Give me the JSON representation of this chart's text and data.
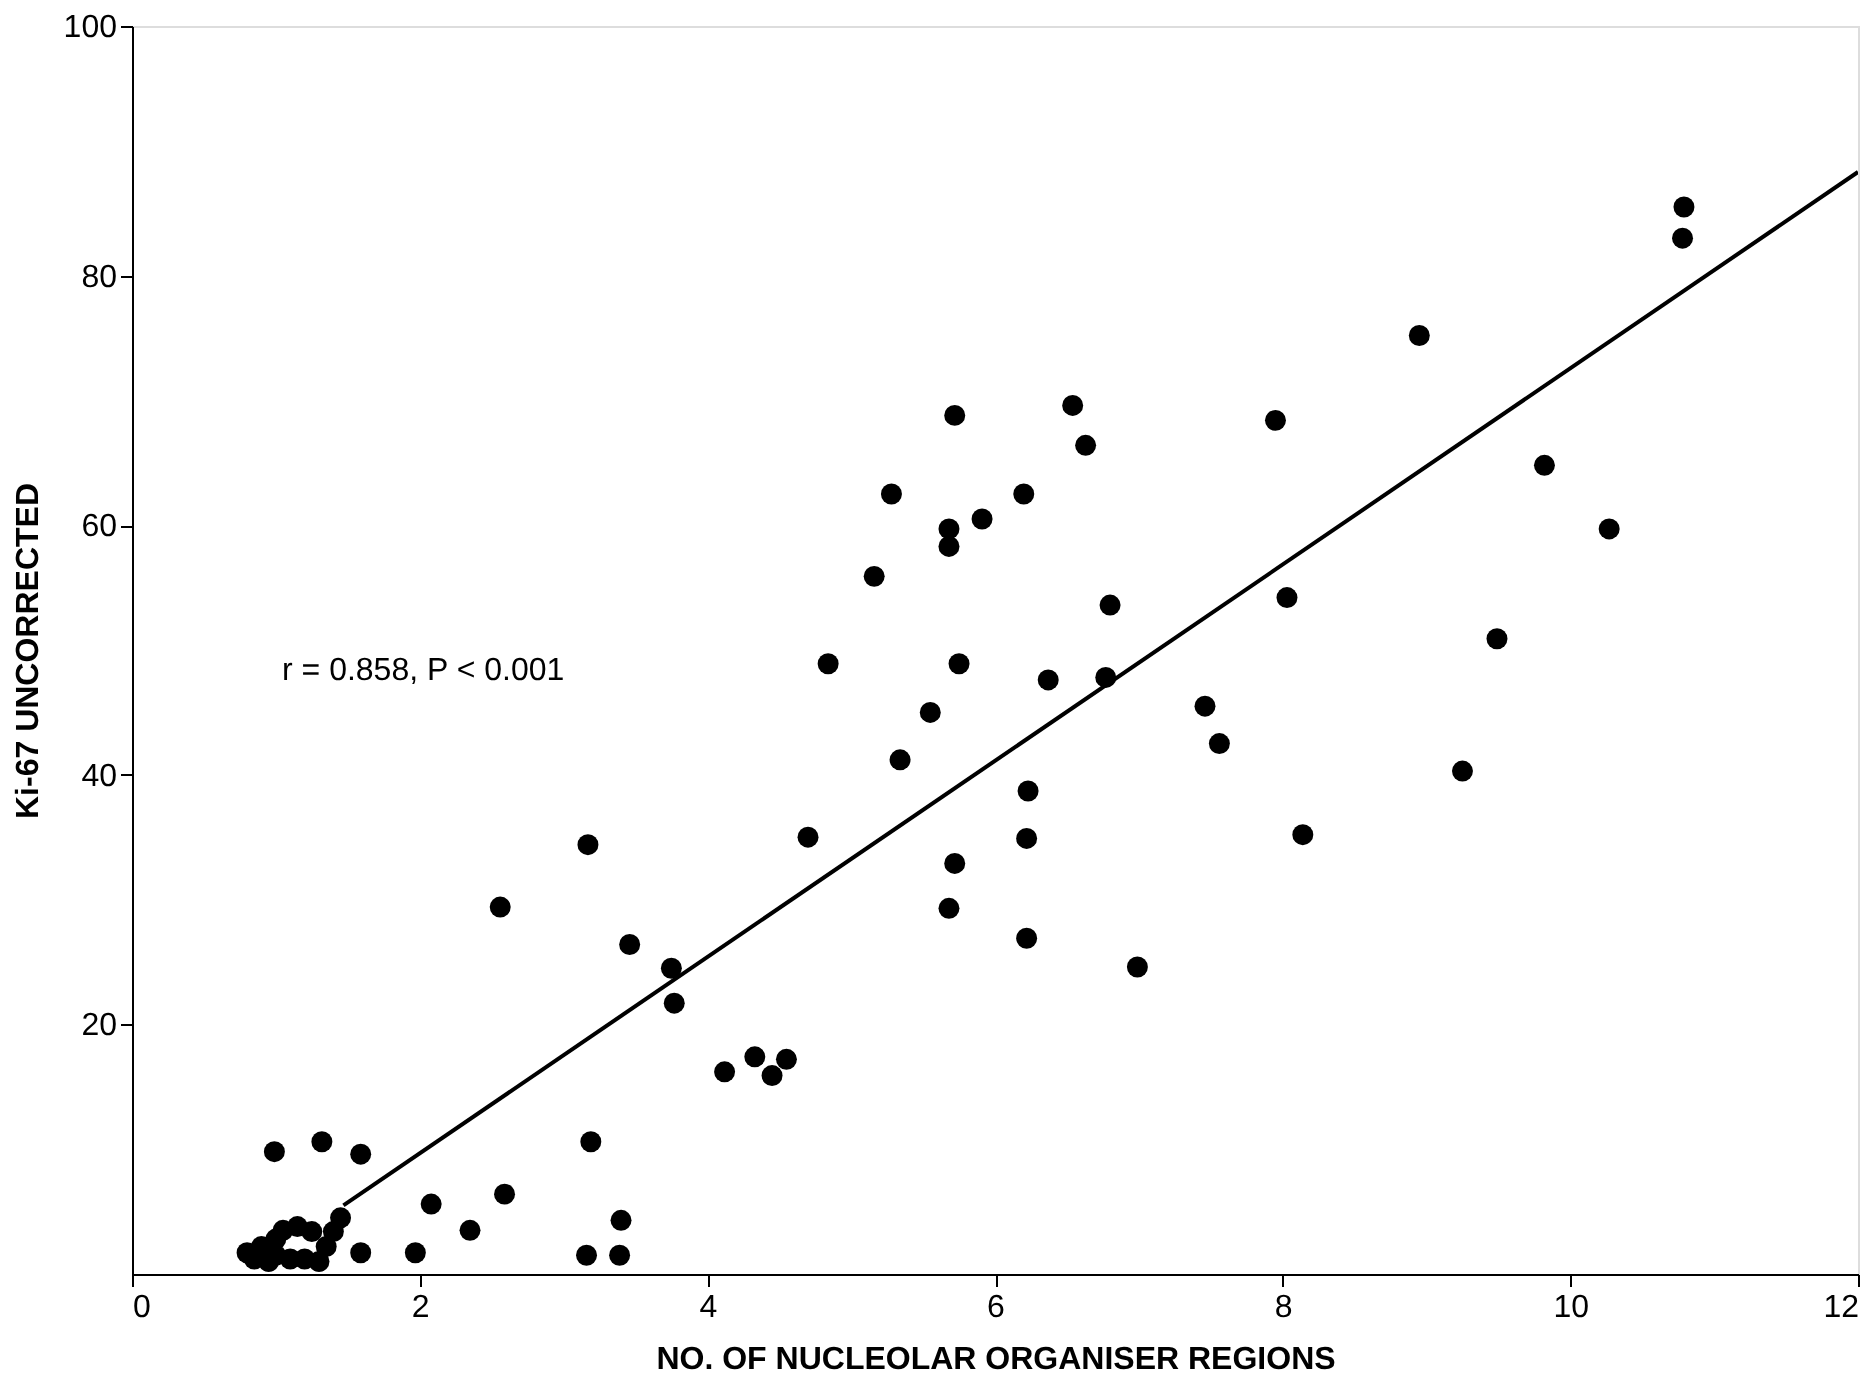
{
  "chart_data": {
    "type": "scatter",
    "xlabel": "NO. OF NUCLEOLAR ORGANISER REGIONS",
    "ylabel": "Ki-67 UNCORRECTED",
    "annotations": [
      "r = 0.858, P < 0.001"
    ],
    "xlim": [
      0,
      12
    ],
    "ylim": [
      0,
      100
    ],
    "xticks": [
      0,
      2,
      4,
      6,
      8,
      10,
      12
    ],
    "yticks": [
      20,
      40,
      60,
      80,
      100
    ],
    "grid": false,
    "series": [
      {
        "marker": "circle",
        "color": "#000000",
        "x": [
          0.8,
          0.85,
          0.9,
          0.95,
          1.0,
          1.0,
          1.05,
          1.1,
          1.15,
          1.2,
          1.25,
          1.3,
          1.35,
          1.4,
          1.45,
          0.99,
          1.32,
          1.59,
          1.59,
          1.97,
          2.08,
          2.35,
          2.59,
          2.56,
          3.17,
          3.19,
          3.16,
          3.39,
          3.4,
          3.46,
          3.75,
          3.77,
          4.12,
          4.33,
          4.45,
          4.55,
          4.7,
          5.34,
          4.84,
          5.16,
          5.28,
          5.55,
          5.72,
          5.68,
          5.68,
          5.91,
          5.75,
          5.72,
          5.68,
          6.2,
          6.23,
          6.22,
          6.22,
          6.37,
          6.54,
          6.63,
          6.8,
          6.77,
          6.99,
          7.46,
          7.56,
          7.95,
          8.03,
          8.14,
          8.95,
          10.79,
          10.78,
          9.82,
          10.27,
          9.49,
          9.25
        ],
        "values": [
          1.7,
          1.2,
          2.2,
          1.0,
          2.8,
          1.5,
          3.5,
          1.2,
          3.8,
          1.2,
          3.4,
          1.0,
          2.2,
          3.4,
          4.5,
          9.8,
          10.6,
          9.6,
          1.7,
          1.7,
          5.6,
          3.5,
          6.4,
          29.4,
          34.4,
          10.6,
          1.5,
          1.5,
          4.3,
          26.4,
          24.5,
          21.7,
          16.2,
          17.4,
          15.9,
          17.2,
          35.0,
          41.2,
          48.9,
          55.9,
          62.5,
          45.0,
          68.8,
          59.7,
          58.3,
          60.5,
          48.9,
          32.9,
          29.3,
          62.5,
          38.7,
          34.9,
          26.9,
          47.6,
          69.6,
          66.4,
          53.6,
          47.8,
          24.6,
          45.5,
          42.5,
          68.4,
          54.2,
          35.2,
          75.2,
          85.5,
          83.0,
          64.8,
          59.7,
          50.9,
          40.3
        ]
      },
      {
        "type": "line",
        "color": "#000000",
        "x": [
          1.47,
          12
        ],
        "values": [
          5.5,
          88.3
        ]
      }
    ]
  }
}
